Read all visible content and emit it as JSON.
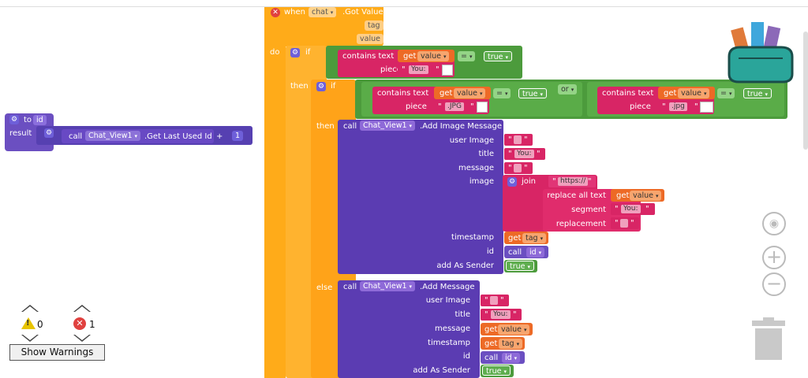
{
  "event": {
    "when": "when",
    "component": "chat",
    "event_name": ".Got Value",
    "param_tag": "tag",
    "param_value": "value",
    "do": "do"
  },
  "if1": {
    "if": "if",
    "contains_text": "contains text",
    "get": "get",
    "var_value": "value",
    "op_eq": "=",
    "true": "true",
    "piece": "piece",
    "piece_text": "You:",
    "then": "then"
  },
  "if2": {
    "if": "if",
    "contains_text": "contains text",
    "get": "get",
    "var_value": "value",
    "op_eq": "=",
    "true": "true",
    "piece": "piece",
    "piece_text": ".JPG",
    "or": "or",
    "contains_text_b": "contains text",
    "get_b": "get",
    "var_value_b": "value",
    "op_eq_b": "=",
    "true_b": "true",
    "piece_b": "piece",
    "piece_text_b": ".jpg",
    "then": "then",
    "else": "else"
  },
  "img_msg": {
    "call": "call",
    "component": "Chat_View1",
    "method": ".Add Image Message",
    "user_image": "user Image",
    "title": "title",
    "title_text": "You:",
    "message": "message",
    "image": "image",
    "join": "join",
    "https": "https://",
    "replace_all": "replace all text",
    "get": "get",
    "var_value": "value",
    "segment": "segment",
    "segment_text": "You:",
    "replacement": "replacement",
    "timestamp": "timestamp",
    "get_tag": "get",
    "var_tag": "tag",
    "id": "id",
    "call_id": "call",
    "id_name": "id",
    "add_as_sender": "add As Sender",
    "true": "true"
  },
  "msg": {
    "call": "call",
    "component": "Chat_View1",
    "method": ".Add Message",
    "user_image": "user Image",
    "title": "title",
    "title_text": "You:",
    "message": "message",
    "get_msg": "get",
    "var_value": "value",
    "timestamp": "timestamp",
    "get_tag": "get",
    "var_tag": "tag",
    "id": "id",
    "call_id": "call",
    "id_name": "id",
    "add_as_sender": "add As Sender",
    "true": "true"
  },
  "proc": {
    "to": "to",
    "name": "id",
    "result": "result",
    "call": "call",
    "component": "Chat_View1",
    "method": ".Get Last Used Id",
    "plus": "+",
    "one": "1"
  },
  "warnings": {
    "warn_count": "0",
    "error_count": "1",
    "show_label": "Show Warnings"
  }
}
